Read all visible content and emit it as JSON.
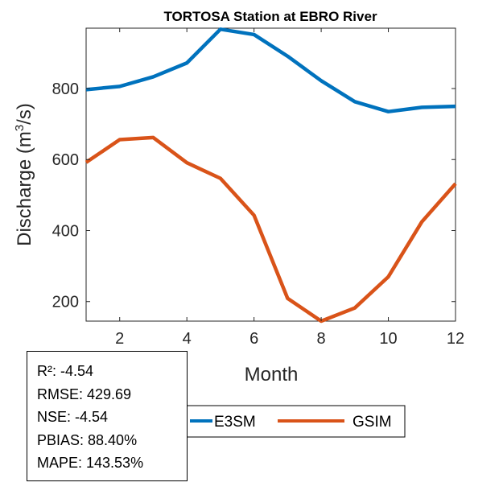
{
  "chart_data": {
    "type": "line",
    "title": "TORTOSA  Station at  EBRO  River",
    "xlabel": "Month",
    "ylabel_main": "Discharge (m",
    "ylabel_sup": "3",
    "ylabel_tail": "/s)",
    "xlim": [
      1,
      12
    ],
    "ylim": [
      145,
      970
    ],
    "xticks": [
      2,
      4,
      6,
      8,
      10,
      12
    ],
    "yticks": [
      200,
      400,
      600,
      800
    ],
    "x": [
      1,
      2,
      3,
      4,
      5,
      6,
      7,
      8,
      9,
      10,
      11,
      12
    ],
    "series": [
      {
        "name": "E3SM",
        "color": "#0072BD",
        "values": [
          797,
          806,
          833,
          872,
          967,
          952,
          891,
          822,
          763,
          735,
          747,
          750
        ]
      },
      {
        "name": "GSIM",
        "color": "#D95319",
        "values": [
          592,
          656,
          662,
          591,
          547,
          443,
          209,
          145,
          182,
          270,
          425,
          532
        ]
      }
    ],
    "legend_position": "bottom",
    "stats": [
      "R²: -4.54",
      "RMSE: 429.69",
      "NSE: -4.54",
      "PBIAS: 88.40%",
      "MAPE: 143.53%"
    ]
  }
}
